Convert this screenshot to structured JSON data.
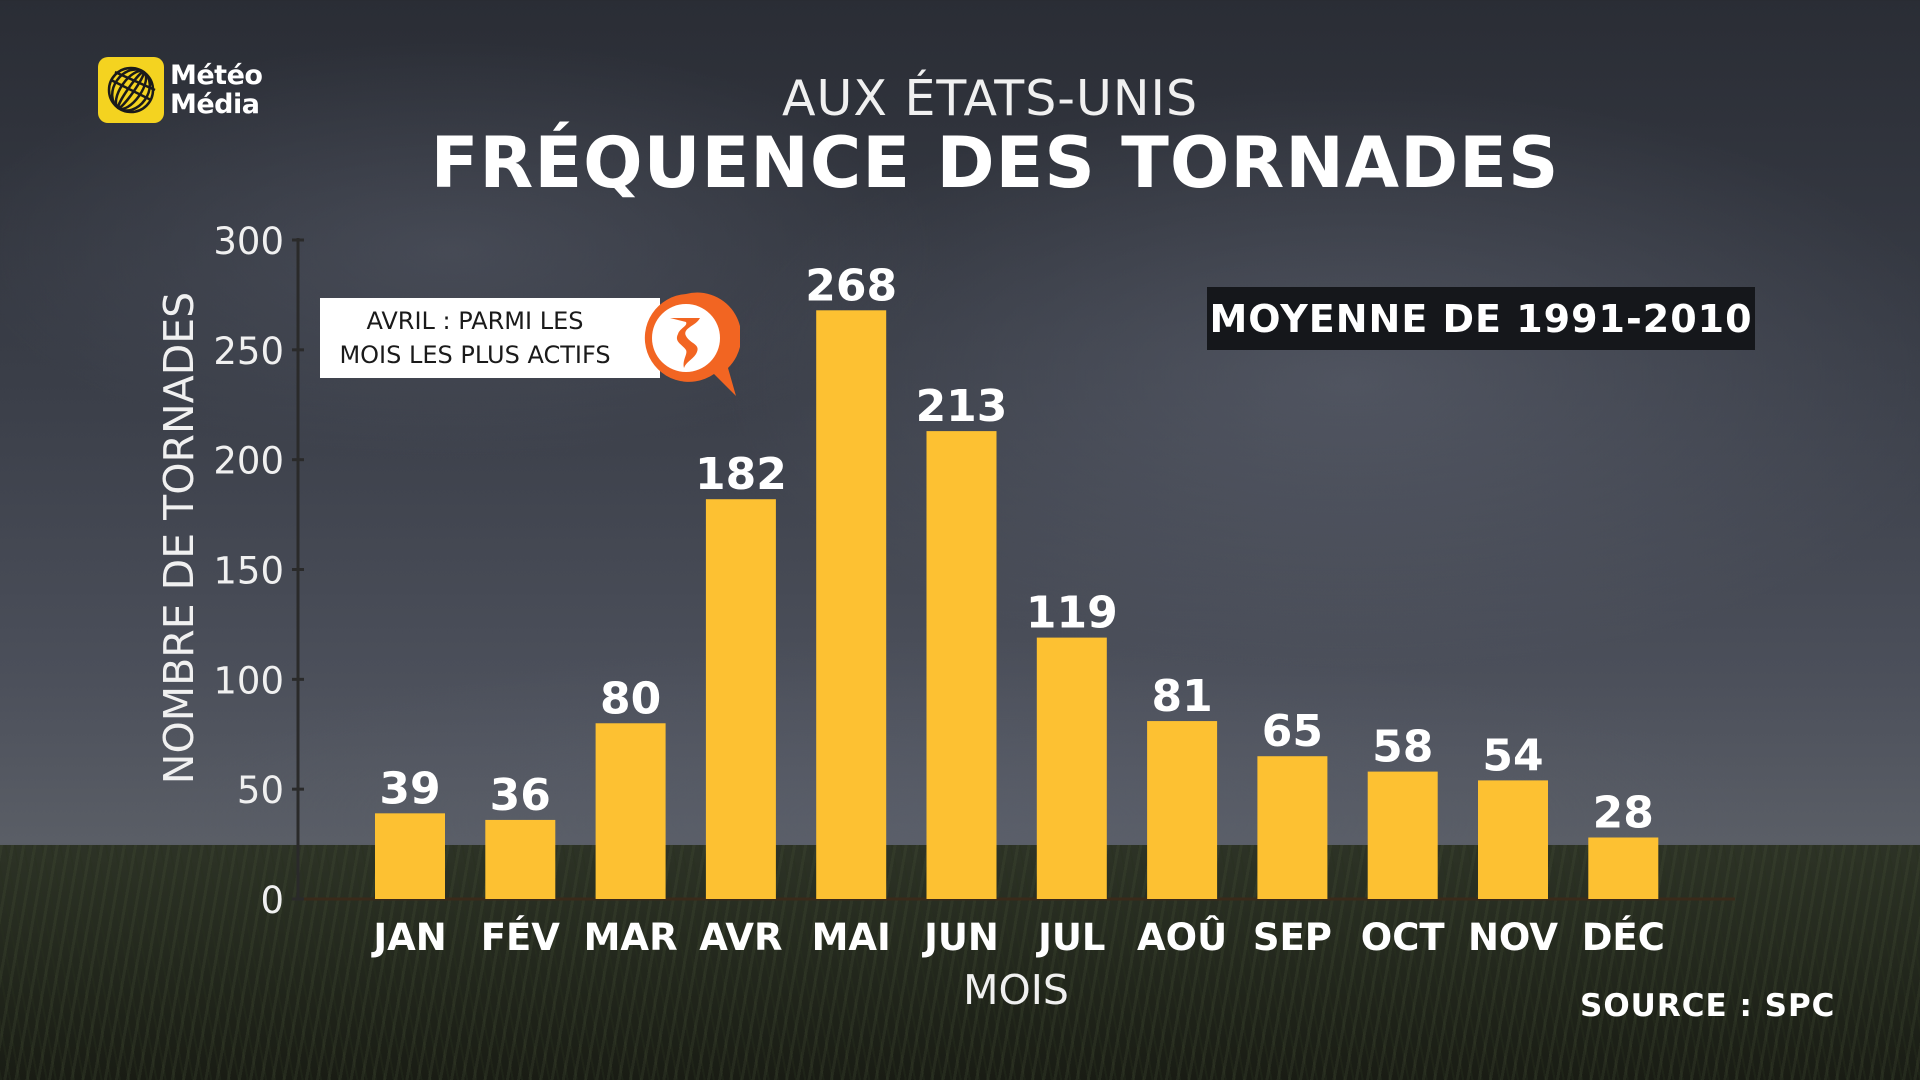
{
  "brand": {
    "line1": "Météo",
    "line2": "Média"
  },
  "supertitle": "AUX ÉTATS-UNIS",
  "title": "FRÉQUENCE DES TORNADES",
  "badge": "MOYENNE DE 1991-2010",
  "callout": {
    "line1": "AVRIL : PARMI LES",
    "line2": "MOIS LES PLUS ACTIFS",
    "icon": "tornado-icon"
  },
  "source": "SOURCE : SPC",
  "colors": {
    "bar": "#fdc132",
    "accent": "#f26522",
    "brand": "#f4d320"
  },
  "chart_data": {
    "type": "bar",
    "xlabel": "MOIS",
    "ylabel": "NOMBRE DE TORNADES",
    "ylim": [
      0,
      300
    ],
    "yticks": [
      0,
      50,
      100,
      150,
      200,
      250,
      300
    ],
    "categories": [
      "JAN",
      "FÉV",
      "MAR",
      "AVR",
      "MAI",
      "JUN",
      "JUL",
      "AOÛ",
      "SEP",
      "OCT",
      "NOV",
      "DÉC"
    ],
    "values": [
      39,
      36,
      80,
      182,
      268,
      213,
      119,
      81,
      65,
      58,
      54,
      28
    ],
    "grid": false,
    "data_labels": true
  }
}
